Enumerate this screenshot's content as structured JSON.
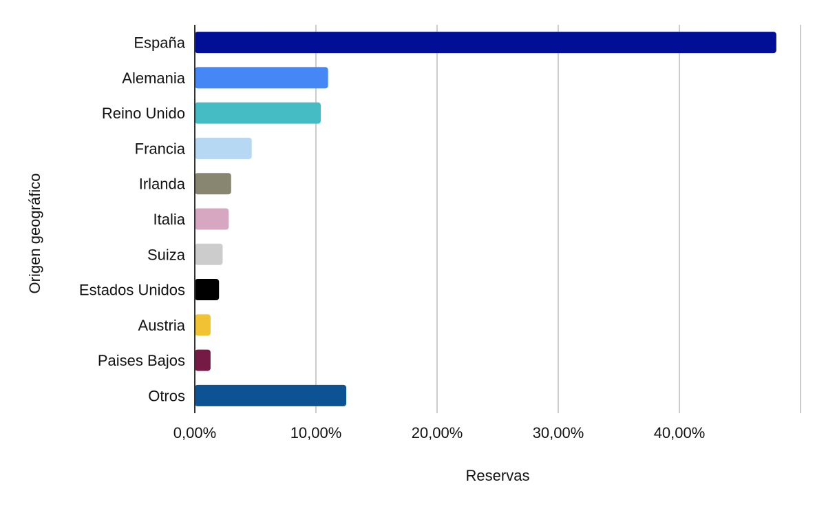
{
  "chart_data": {
    "type": "bar",
    "orientation": "horizontal",
    "title": "",
    "xlabel": "Reservas",
    "ylabel": "Origen geográfico",
    "xlim": [
      0,
      50
    ],
    "x_ticks": [
      0,
      10,
      20,
      30,
      40
    ],
    "x_tick_labels": [
      "0,00%",
      "10,00%",
      "20,00%",
      "30,00%",
      "40,00%"
    ],
    "grid": "vertical",
    "legend": "none",
    "categories": [
      "España",
      "Alemania",
      "Reino Unido",
      "Francia",
      "Irlanda",
      "Italia",
      "Suiza",
      "Estados Unidos",
      "Austria",
      "Paises Bajos",
      "Otros"
    ],
    "values": [
      48.0,
      11.0,
      10.4,
      4.7,
      3.0,
      2.8,
      2.3,
      2.0,
      1.3,
      1.3,
      12.5
    ],
    "colors": [
      "#000f96",
      "#4587f5",
      "#45bcc4",
      "#b6d8f3",
      "#888670",
      "#d7a6c0",
      "#cccccc",
      "#000000",
      "#f0c234",
      "#751a45",
      "#0d5393"
    ]
  }
}
